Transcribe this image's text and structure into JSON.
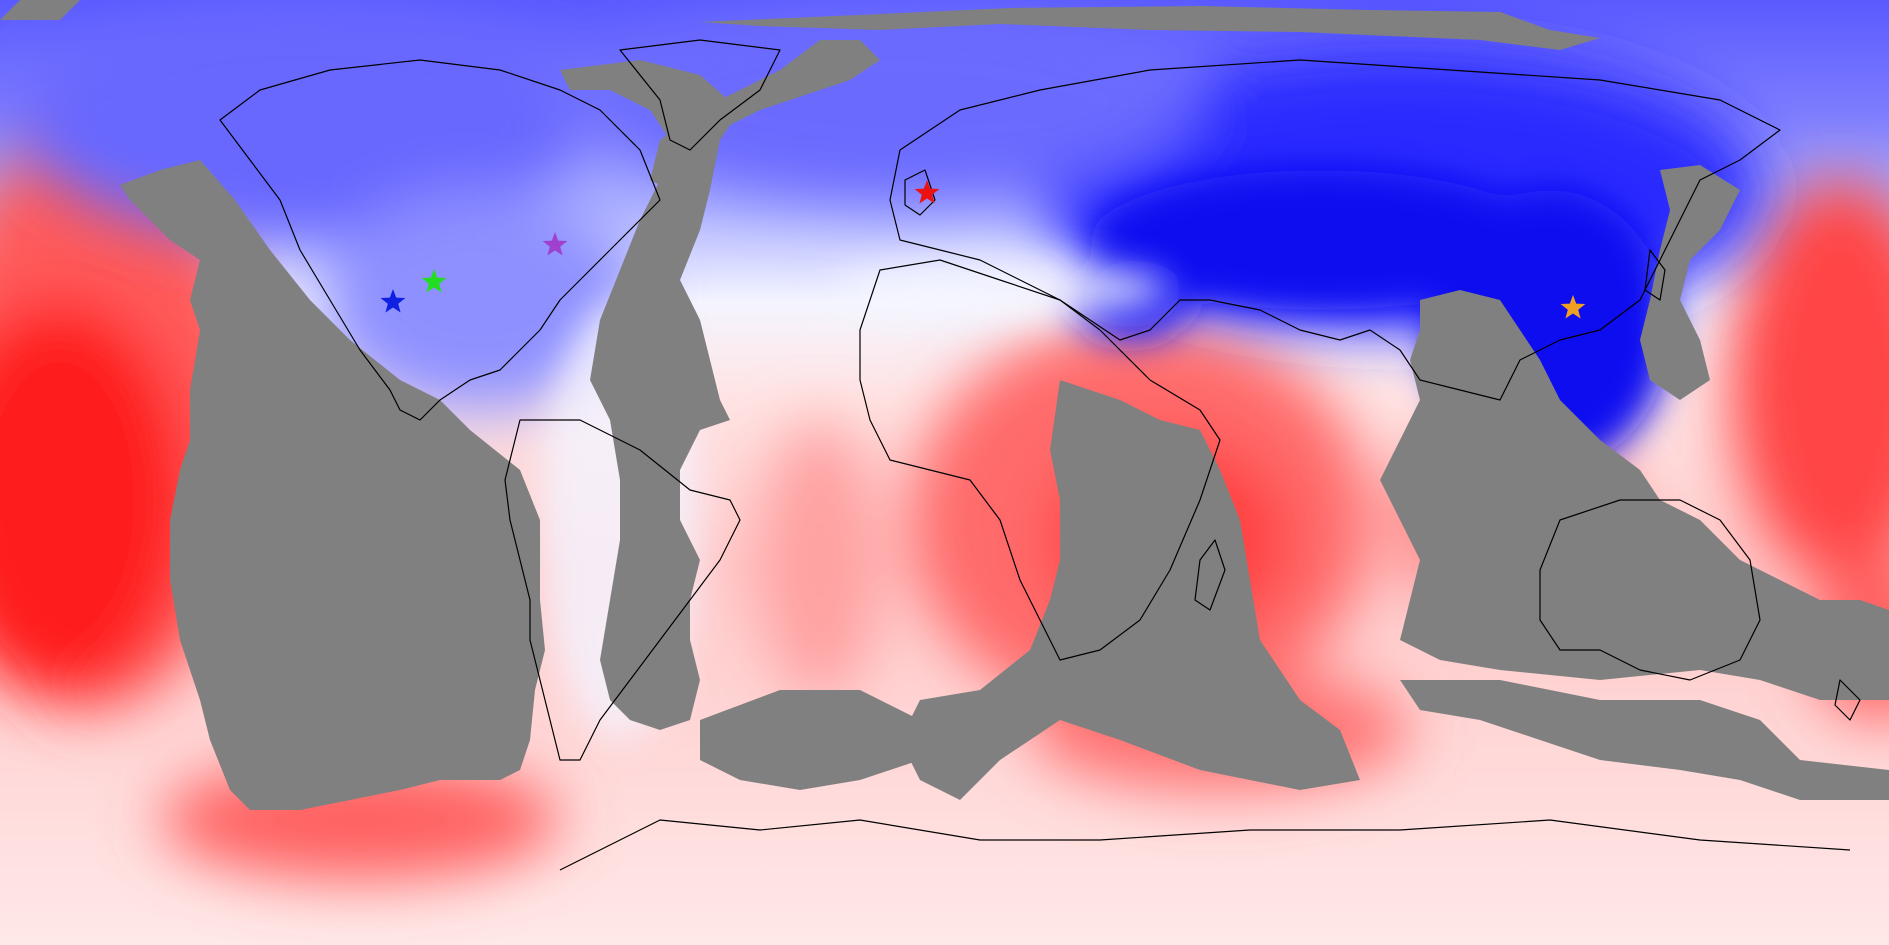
{
  "colors": {
    "no_data": "#808080",
    "strong_blue": "#0a0aee",
    "mid_blue": "#6b6bff",
    "light_blue": "#c8ccff",
    "white": "#f7f8ff",
    "light_red": "#ffd6d6",
    "mid_red": "#ff6f6f",
    "strong_red": "#ff1313",
    "coastline": "#000000"
  },
  "markers": [
    {
      "name": "blue-star-marker",
      "color": "#1020e0"
    },
    {
      "name": "green-star-marker",
      "color": "#22dd22"
    },
    {
      "name": "purple-star-marker",
      "color": "#a040d0"
    },
    {
      "name": "red-star-marker",
      "color": "#ee1111"
    },
    {
      "name": "orange-star-marker",
      "color": "#f0a020"
    }
  ]
}
